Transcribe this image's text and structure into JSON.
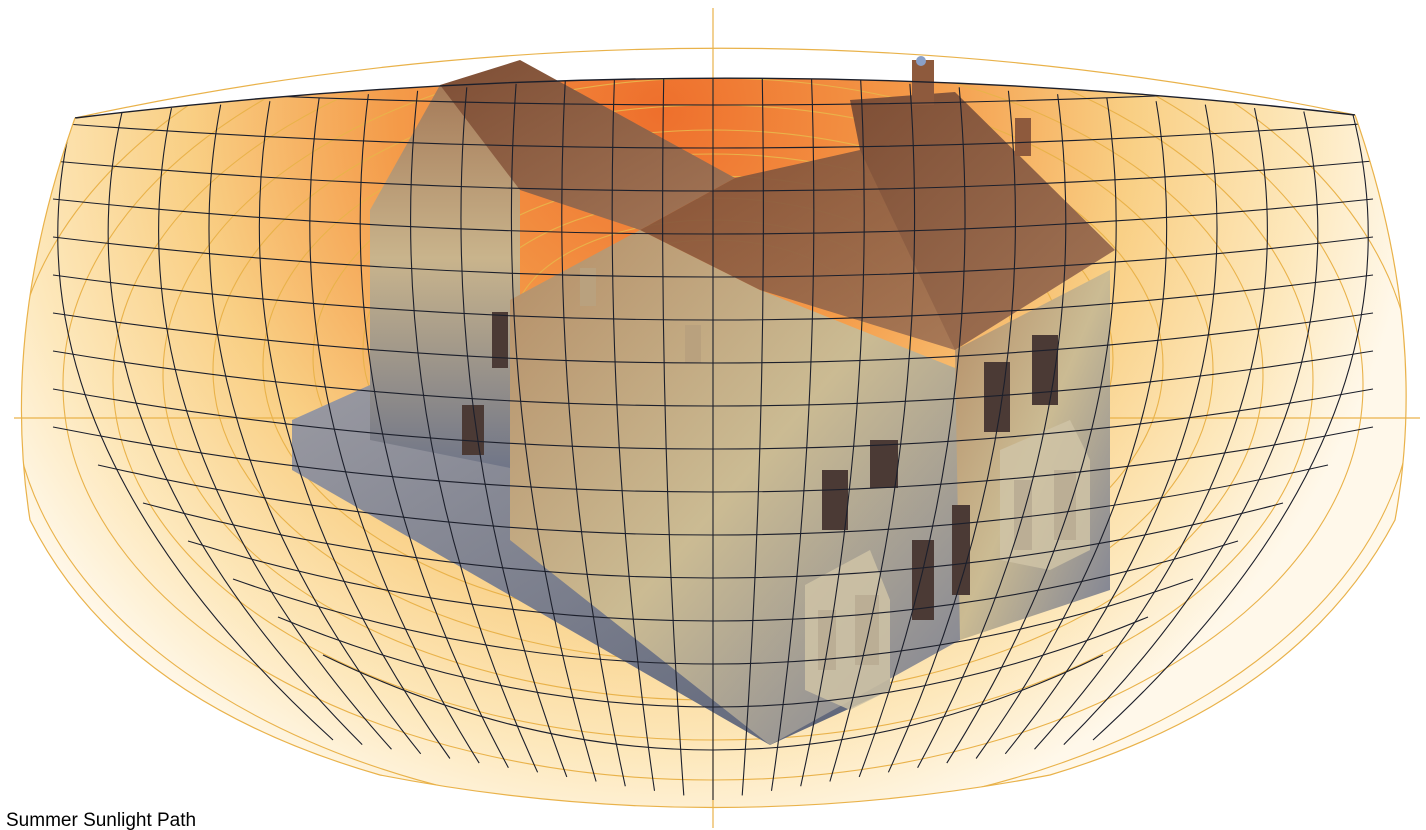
{
  "caption": "Summer Sunlight Path",
  "colors": {
    "warm_zenith": "#f07a34",
    "warm_mid": "#f6b45e",
    "warm_edge": "#fff3d6",
    "grid_lines": "#1c1f2b",
    "ring_lines": "#e9b24a",
    "house_wall": "#c8b58e",
    "house_shadow": "#5b6478",
    "house_roof": "#8a5a3c"
  },
  "icons": {
    "sun_marker": "sun-position-marker"
  }
}
